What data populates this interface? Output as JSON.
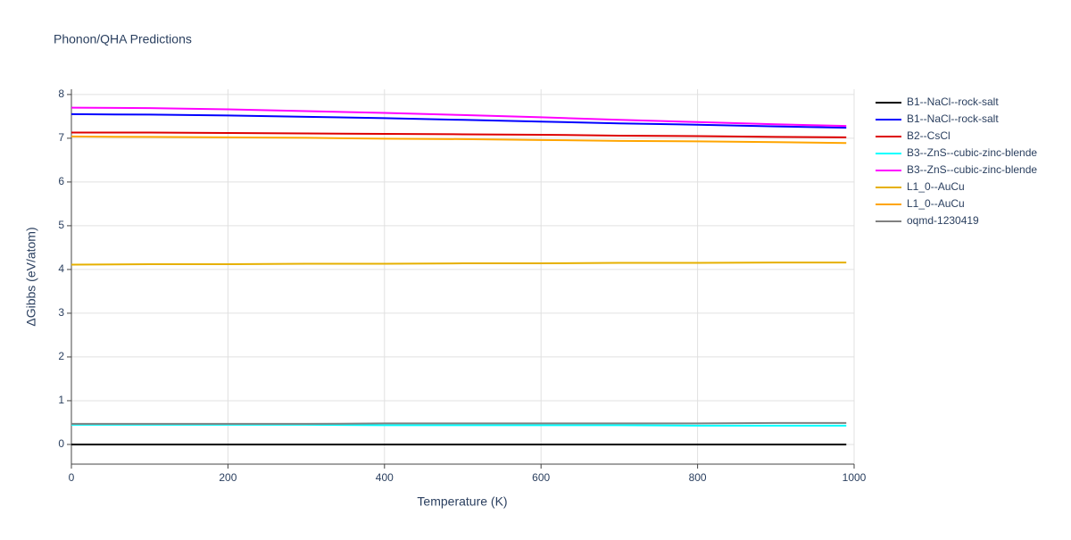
{
  "chart_data": {
    "type": "line",
    "title": "Phonon/QHA Predictions",
    "xlabel": "Temperature (K)",
    "ylabel": "ΔGibbs (eV/atom)",
    "x": [
      0,
      100,
      200,
      300,
      400,
      500,
      600,
      700,
      800,
      900,
      990
    ],
    "xlim": [
      0,
      1000
    ],
    "xticks": [
      0,
      200,
      400,
      600,
      800,
      1000
    ],
    "ylim": [
      -0.45,
      8.12
    ],
    "yticks": [
      0,
      1,
      2,
      3,
      4,
      5,
      6,
      7,
      8
    ],
    "grid": true,
    "legend": "right",
    "series": [
      {
        "name": "B1--NaCl--rock-salt",
        "color": "#000000",
        "values": [
          0,
          0,
          0,
          0,
          0,
          0,
          0,
          0,
          0,
          0,
          0
        ]
      },
      {
        "name": "B1--NaCl--rock-salt",
        "color": "#0000ff",
        "values": [
          7.55,
          7.54,
          7.52,
          7.49,
          7.46,
          7.42,
          7.38,
          7.34,
          7.31,
          7.27,
          7.24
        ]
      },
      {
        "name": "B2--CsCl",
        "color": "#dd0000",
        "values": [
          7.13,
          7.13,
          7.12,
          7.11,
          7.1,
          7.09,
          7.08,
          7.06,
          7.05,
          7.03,
          7.02
        ]
      },
      {
        "name": "B3--ZnS--cubic-zinc-blende",
        "color": "#00ffff",
        "values": [
          0.45,
          0.45,
          0.45,
          0.45,
          0.44,
          0.44,
          0.44,
          0.44,
          0.43,
          0.43,
          0.43
        ]
      },
      {
        "name": "B3--ZnS--cubic-zinc-blende",
        "color": "#ff00ff",
        "values": [
          7.7,
          7.69,
          7.66,
          7.62,
          7.58,
          7.53,
          7.48,
          7.42,
          7.37,
          7.32,
          7.28
        ]
      },
      {
        "name": "L1_0--AuCu",
        "color": "#e6b000",
        "values": [
          4.11,
          4.12,
          4.12,
          4.13,
          4.13,
          4.14,
          4.14,
          4.15,
          4.15,
          4.16,
          4.16
        ]
      },
      {
        "name": "L1_0--AuCu",
        "color": "#ffa500",
        "values": [
          7.04,
          7.03,
          7.02,
          7.01,
          6.99,
          6.98,
          6.96,
          6.94,
          6.93,
          6.91,
          6.89
        ]
      },
      {
        "name": "oqmd-1230419",
        "color": "#808080",
        "values": [
          0.47,
          0.47,
          0.47,
          0.47,
          0.48,
          0.48,
          0.48,
          0.48,
          0.48,
          0.49,
          0.49
        ]
      }
    ]
  }
}
